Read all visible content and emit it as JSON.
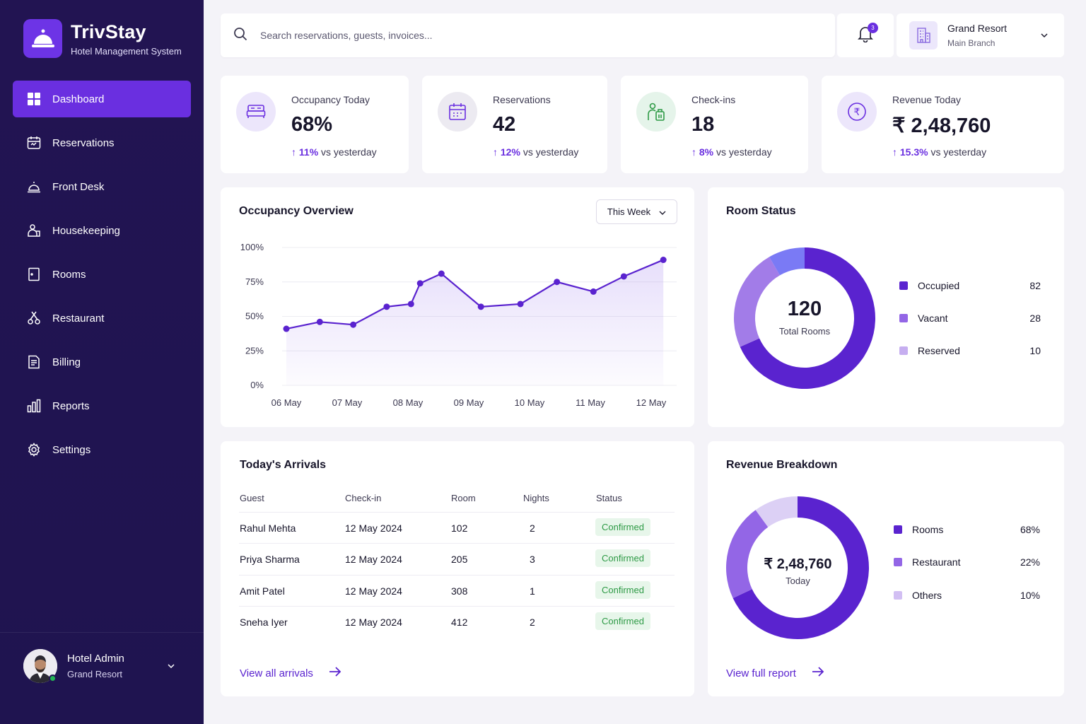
{
  "brand": {
    "name": "TrivStay",
    "subtitle": "Hotel Management System"
  },
  "nav": [
    {
      "label": "Dashboard",
      "icon": "grid-icon",
      "active": true
    },
    {
      "label": "Reservations",
      "icon": "calendar-icon"
    },
    {
      "label": "Front Desk",
      "icon": "bell-icon"
    },
    {
      "label": "Housekeeping",
      "icon": "housekeeping-icon"
    },
    {
      "label": "Rooms",
      "icon": "door-icon"
    },
    {
      "label": "Restaurant",
      "icon": "utensils-icon"
    },
    {
      "label": "Billing",
      "icon": "invoice-icon"
    },
    {
      "label": "Reports",
      "icon": "bar-chart-icon"
    },
    {
      "label": "Settings",
      "icon": "gear-icon"
    }
  ],
  "user": {
    "name": "Hotel Admin",
    "org": "Grand Resort"
  },
  "search": {
    "placeholder": "Search reservations, guests, invoices..."
  },
  "notifications": {
    "count": "3"
  },
  "branch": {
    "name": "Grand Resort",
    "sub": "Main Branch"
  },
  "kpis": [
    {
      "label": "Occupancy Today",
      "value": "68%",
      "delta": "11%",
      "suffix": "vs yesterday"
    },
    {
      "label": "Reservations",
      "value": "42",
      "delta": "12%",
      "suffix": "vs yesterday"
    },
    {
      "label": "Check-ins",
      "value": "18",
      "delta": "8%",
      "suffix": "vs yesterday"
    },
    {
      "label": "Revenue Today",
      "value": "₹ 2,48,760",
      "delta": "15.3%",
      "suffix": "vs yesterday"
    }
  ],
  "occupancy": {
    "title": "Occupancy Overview",
    "range": "This Week",
    "chart_data": {
      "type": "area",
      "x": [
        0,
        0.55,
        1.1,
        1.65,
        2.05,
        2.2,
        2.55,
        3.2,
        3.85,
        4.45,
        5.05,
        5.55,
        6.2
      ],
      "y": [
        41,
        46,
        44,
        57,
        59,
        74,
        81,
        57,
        59,
        75,
        68,
        79,
        91
      ],
      "categories": [
        "06 May",
        "07 May",
        "08 May",
        "09 May",
        "10 May",
        "11 May",
        "12 May"
      ],
      "yticks": [
        "100%",
        "75%",
        "50%",
        "25%",
        "0%"
      ],
      "ylim": [
        0,
        100
      ],
      "color": "#5a23cf"
    }
  },
  "room_status": {
    "title": "Room Status",
    "total": "120",
    "total_label": "Total Rooms",
    "chart_data": {
      "type": "pie",
      "categories": [
        "Occupied",
        "Vacant",
        "Reserved"
      ],
      "values": [
        82,
        28,
        10
      ],
      "colors": [
        "#5a23cf",
        "#a27ce8",
        "#7a7af5"
      ]
    },
    "legend": [
      {
        "label": "Occupied",
        "value": "82",
        "color": "#5a23cf"
      },
      {
        "label": "Vacant",
        "value": "28",
        "color": "#9366e6"
      },
      {
        "label": "Reserved",
        "value": "10",
        "color": "#c6aef0"
      }
    ]
  },
  "arrivals": {
    "title": "Today's Arrivals",
    "columns": [
      "Guest",
      "Check-in",
      "Room",
      "Nights",
      "Status"
    ],
    "rows": [
      {
        "guest": "Rahul Mehta",
        "checkin": "12 May 2024",
        "room": "102",
        "nights": "2",
        "status": "Confirmed"
      },
      {
        "guest": "Priya Sharma",
        "checkin": "12 May 2024",
        "room": "205",
        "nights": "3",
        "status": "Confirmed"
      },
      {
        "guest": "Amit Patel",
        "checkin": "12 May 2024",
        "room": "308",
        "nights": "1",
        "status": "Confirmed"
      },
      {
        "guest": "Sneha Iyer",
        "checkin": "12 May 2024",
        "room": "412",
        "nights": "2",
        "status": "Confirmed"
      }
    ],
    "link": "View all arrivals"
  },
  "revenue": {
    "title": "Revenue Breakdown",
    "total": "₹ 2,48,760",
    "total_label": "Today",
    "chart_data": {
      "type": "pie",
      "categories": [
        "Rooms",
        "Restaurant",
        "Others"
      ],
      "values": [
        68,
        22,
        10
      ],
      "colors": [
        "#5a23cf",
        "#9366e6",
        "#dcd0f5"
      ]
    },
    "legend": [
      {
        "label": "Rooms",
        "value": "68%",
        "color": "#5a23cf"
      },
      {
        "label": "Restaurant",
        "value": "22%",
        "color": "#9366e6"
      },
      {
        "label": "Others",
        "value": "10%",
        "color": "#d2bff3"
      }
    ],
    "link": "View full report"
  }
}
